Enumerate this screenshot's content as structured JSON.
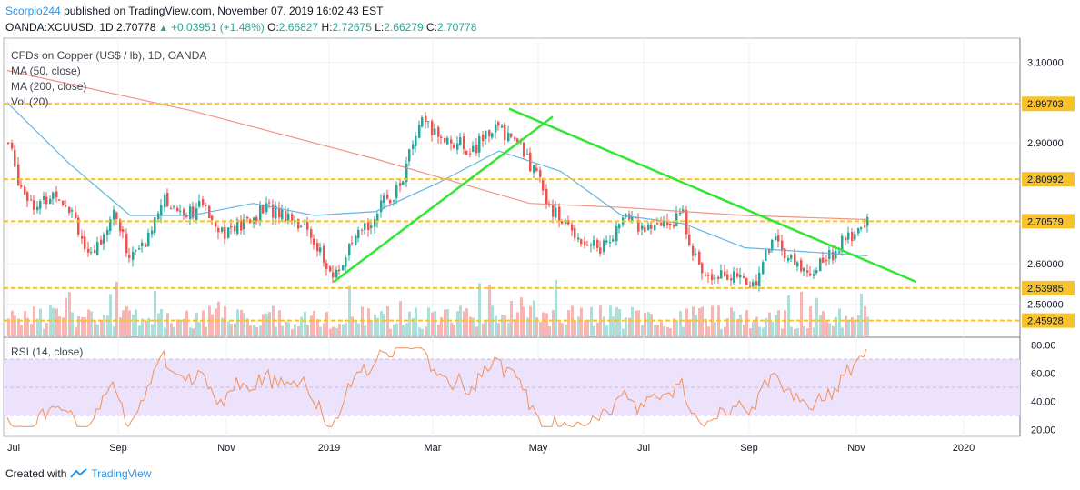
{
  "header": {
    "user": "Scorpio244",
    "published": "published on TradingView.com, November 07, 2019 16:02:43 EST",
    "symbol": "OANDA:XCUUSD, 1D",
    "last": "2.70778",
    "arrow": "▲",
    "change": "+0.03951 (+1.48%)",
    "o_label": "O:",
    "o": "2.66827",
    "h_label": "H:",
    "h": "2.72675",
    "l_label": "L:",
    "l": "2.66279",
    "c_label": "C:",
    "c": "2.70778"
  },
  "legend": {
    "title": "CFDs on Copper (US$ / lb), 1D, OANDA",
    "ma50": "MA (50, close)",
    "ma200": "MA (200, close)",
    "vol": "Vol (20)",
    "rsi": "RSI (14, close)"
  },
  "footer": {
    "created": "Created with",
    "brand": "TradingView"
  },
  "colors": {
    "up": "#26a69a",
    "down": "#ef5350",
    "level": "#f7c22b",
    "trend": "#32e632",
    "ma50": "#4fb0e0",
    "ma200": "#ef8a7a",
    "rsi": "#f2905a",
    "rsi_band": "#ede2fb",
    "level_label_bg": "#f7c22b"
  },
  "chart_data": [
    {
      "type": "candlestick",
      "title": "CFDs on Copper (US$ / lb), 1D, OANDA",
      "x_ticks": [
        "Jul",
        "Sep",
        "Nov",
        "2019",
        "Mar",
        "May",
        "Jul",
        "Sep",
        "Nov",
        "2020"
      ],
      "y_ticks": [
        "3.10000",
        "2.90000",
        "2.80992",
        "2.70579",
        "2.60000",
        "2.53985",
        "2.50000",
        "2.45928"
      ],
      "ylim": [
        2.42,
        3.16
      ],
      "horizontal_levels": [
        2.99703,
        2.80992,
        2.70579,
        2.53985,
        2.45928
      ],
      "series": [
        {
          "name": "MA (50, close)",
          "x": [
            0,
            20,
            40,
            60,
            80,
            100,
            120,
            140,
            160,
            180,
            200,
            220,
            240,
            260,
            280
          ],
          "values": [
            3.0,
            2.85,
            2.72,
            2.72,
            2.75,
            2.72,
            2.73,
            2.8,
            2.88,
            2.83,
            2.72,
            2.7,
            2.64,
            2.63,
            2.62
          ]
        },
        {
          "name": "MA (200, close)",
          "x": [
            0,
            60,
            120,
            170,
            200,
            240,
            280
          ],
          "values": [
            3.08,
            2.98,
            2.86,
            2.75,
            2.74,
            2.72,
            2.71
          ]
        }
      ],
      "trendlines": [
        {
          "from": [
            "Jan 2019",
            2.555
          ],
          "to": [
            "May 2019",
            2.965
          ]
        },
        {
          "from": [
            "Apr 2019",
            2.985
          ],
          "to": [
            "Dec 2019",
            2.555
          ]
        }
      ],
      "last_close": 2.70778
    },
    {
      "type": "line",
      "title": "RSI (14, close)",
      "y_ticks": [
        "80.00",
        "60.00",
        "40.00",
        "20.00"
      ],
      "ylim": [
        15,
        85
      ],
      "band": [
        30,
        70
      ]
    }
  ]
}
